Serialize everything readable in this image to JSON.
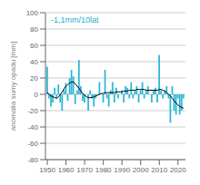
{
  "chart_data": {
    "type": "bar",
    "ylabel": "anomalia sumy opadu [mm]",
    "annotations": [
      {
        "text": "-1,1mm/10lat",
        "color": "#1ab0cc"
      }
    ],
    "x": [
      1950,
      1951,
      1952,
      1953,
      1954,
      1955,
      1956,
      1957,
      1958,
      1959,
      1960,
      1961,
      1962,
      1963,
      1964,
      1965,
      1966,
      1967,
      1968,
      1969,
      1970,
      1971,
      1972,
      1973,
      1974,
      1975,
      1976,
      1977,
      1978,
      1979,
      1980,
      1981,
      1982,
      1983,
      1984,
      1985,
      1986,
      1987,
      1988,
      1989,
      1990,
      1991,
      1992,
      1993,
      1994,
      1995,
      1996,
      1997,
      1998,
      1999,
      2000,
      2001,
      2002,
      2003,
      2004,
      2005,
      2006,
      2007,
      2008,
      2009,
      2010,
      2011,
      2012,
      2013,
      2014,
      2015,
      2016,
      2017,
      2018,
      2019,
      2020,
      2021,
      2022,
      2023
    ],
    "series": [
      {
        "type": "bar",
        "color": "#29b6d5",
        "values": [
          34,
          -5,
          -15,
          -10,
          8,
          -5,
          12,
          -10,
          -20,
          5,
          14,
          -8,
          20,
          30,
          22,
          -12,
          5,
          42,
          10,
          -8,
          -10,
          0,
          -20,
          5,
          -5,
          -15,
          -5,
          0,
          15,
          0,
          -10,
          30,
          -5,
          -15,
          5,
          15,
          -10,
          8,
          -5,
          0,
          5,
          -10,
          10,
          8,
          -5,
          15,
          -5,
          5,
          10,
          -10,
          5,
          15,
          -5,
          5,
          10,
          0,
          -10,
          5,
          8,
          -10,
          48,
          5,
          -5,
          5,
          10,
          -5,
          -35,
          10,
          -20,
          -25,
          -5,
          -25,
          -20,
          -5
        ]
      },
      {
        "type": "line",
        "color": "#000000",
        "values": [
          2,
          0,
          -2,
          -3,
          -4,
          -5,
          -3,
          0,
          3,
          7,
          10,
          12,
          14,
          15,
          15,
          13,
          10,
          7,
          4,
          1,
          -1,
          -3,
          -4,
          -4,
          -4,
          -3,
          -2,
          -1,
          0,
          1,
          1,
          2,
          2,
          2,
          2,
          2,
          2,
          3,
          3,
          3,
          3,
          4,
          4,
          4,
          5,
          5,
          5,
          5,
          6,
          6,
          6,
          6,
          6,
          5,
          5,
          5,
          5,
          5,
          5,
          5,
          6,
          6,
          5,
          4,
          2,
          0,
          -2,
          -5,
          -8,
          -11,
          -13,
          -15,
          -16,
          -17
        ]
      }
    ],
    "xlim": [
      1949,
      2024
    ],
    "ylim": [
      -80,
      100
    ],
    "xticks": [
      1950,
      1960,
      1970,
      1980,
      1990,
      2000,
      2010,
      2020
    ],
    "yticks": [
      -80,
      -60,
      -40,
      -20,
      0,
      20,
      40,
      60,
      80,
      100
    ],
    "grid": "y"
  }
}
